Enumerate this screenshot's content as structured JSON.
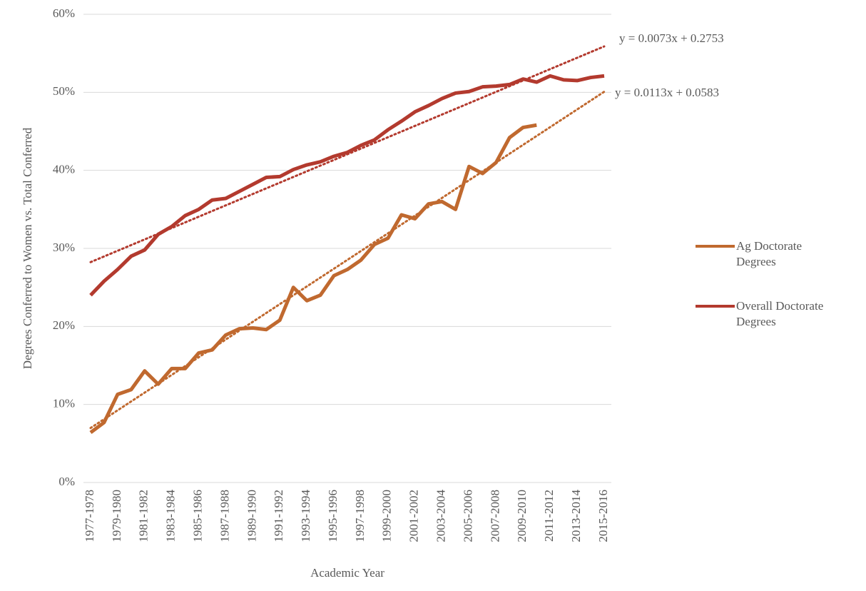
{
  "chart_data": {
    "type": "line",
    "x_label": "Academic Year",
    "y_label": "Degrees Conferred to Women vs. Total Conferred",
    "categories": [
      "1977-1978",
      null,
      "1979-1980",
      null,
      "1981-1982",
      null,
      "1983-1984",
      null,
      "1985-1986",
      null,
      "1987-1988",
      null,
      "1989-1990",
      null,
      "1991-1992",
      null,
      "1993-1994",
      null,
      "1995-1996",
      null,
      "1997-1998",
      null,
      "1999-2000",
      null,
      "2001-2002",
      null,
      "2003-2004",
      null,
      "2005-2006",
      null,
      "2007-2008",
      null,
      "2009-2010",
      null,
      "2011-2012",
      null,
      "2013-2014",
      null,
      "2015-2016"
    ],
    "series": [
      {
        "name": "Ag Doctorate Degrees",
        "color": "#c0692f",
        "trendline": true,
        "values": [
          6.4,
          7.7,
          11.3,
          11.9,
          14.3,
          12.6,
          14.6,
          14.6,
          16.6,
          17.0,
          18.9,
          19.7,
          19.8,
          19.6,
          20.8,
          25.0,
          23.3,
          24.0,
          26.5,
          27.3,
          28.5,
          30.5,
          31.3,
          34.3,
          33.8,
          35.7,
          36.0,
          35.0,
          40.5,
          39.6,
          41.0,
          44.2,
          45.5,
          45.8,
          null,
          null,
          null,
          null,
          null
        ]
      },
      {
        "name": "Overall Doctorate Degrees",
        "color": "#b33a2e",
        "trendline": true,
        "values": [
          24.0,
          25.8,
          27.3,
          29.0,
          29.8,
          31.8,
          32.8,
          34.2,
          35.0,
          36.2,
          36.4,
          37.3,
          38.2,
          39.1,
          39.2,
          40.1,
          40.7,
          41.1,
          41.8,
          42.3,
          43.2,
          43.9,
          45.2,
          46.3,
          47.5,
          48.3,
          49.2,
          49.9,
          50.1,
          50.7,
          50.8,
          51.0,
          51.7,
          51.3,
          52.1,
          51.6,
          51.5,
          51.9,
          52.1
        ]
      }
    ],
    "annotations": [
      "y = 0.0073x + 0.2753",
      "y = 0.0113x + 0.0583"
    ],
    "ylim": [
      0,
      60
    ],
    "yticks": [
      {
        "value": 0,
        "label": "0%"
      },
      {
        "value": 10,
        "label": "10%"
      },
      {
        "value": 20,
        "label": "20%"
      },
      {
        "value": 30,
        "label": "30%"
      },
      {
        "value": 40,
        "label": "40%"
      },
      {
        "value": 50,
        "label": "50%"
      },
      {
        "value": 60,
        "label": "60%"
      }
    ],
    "grid": true,
    "legend": "right"
  }
}
